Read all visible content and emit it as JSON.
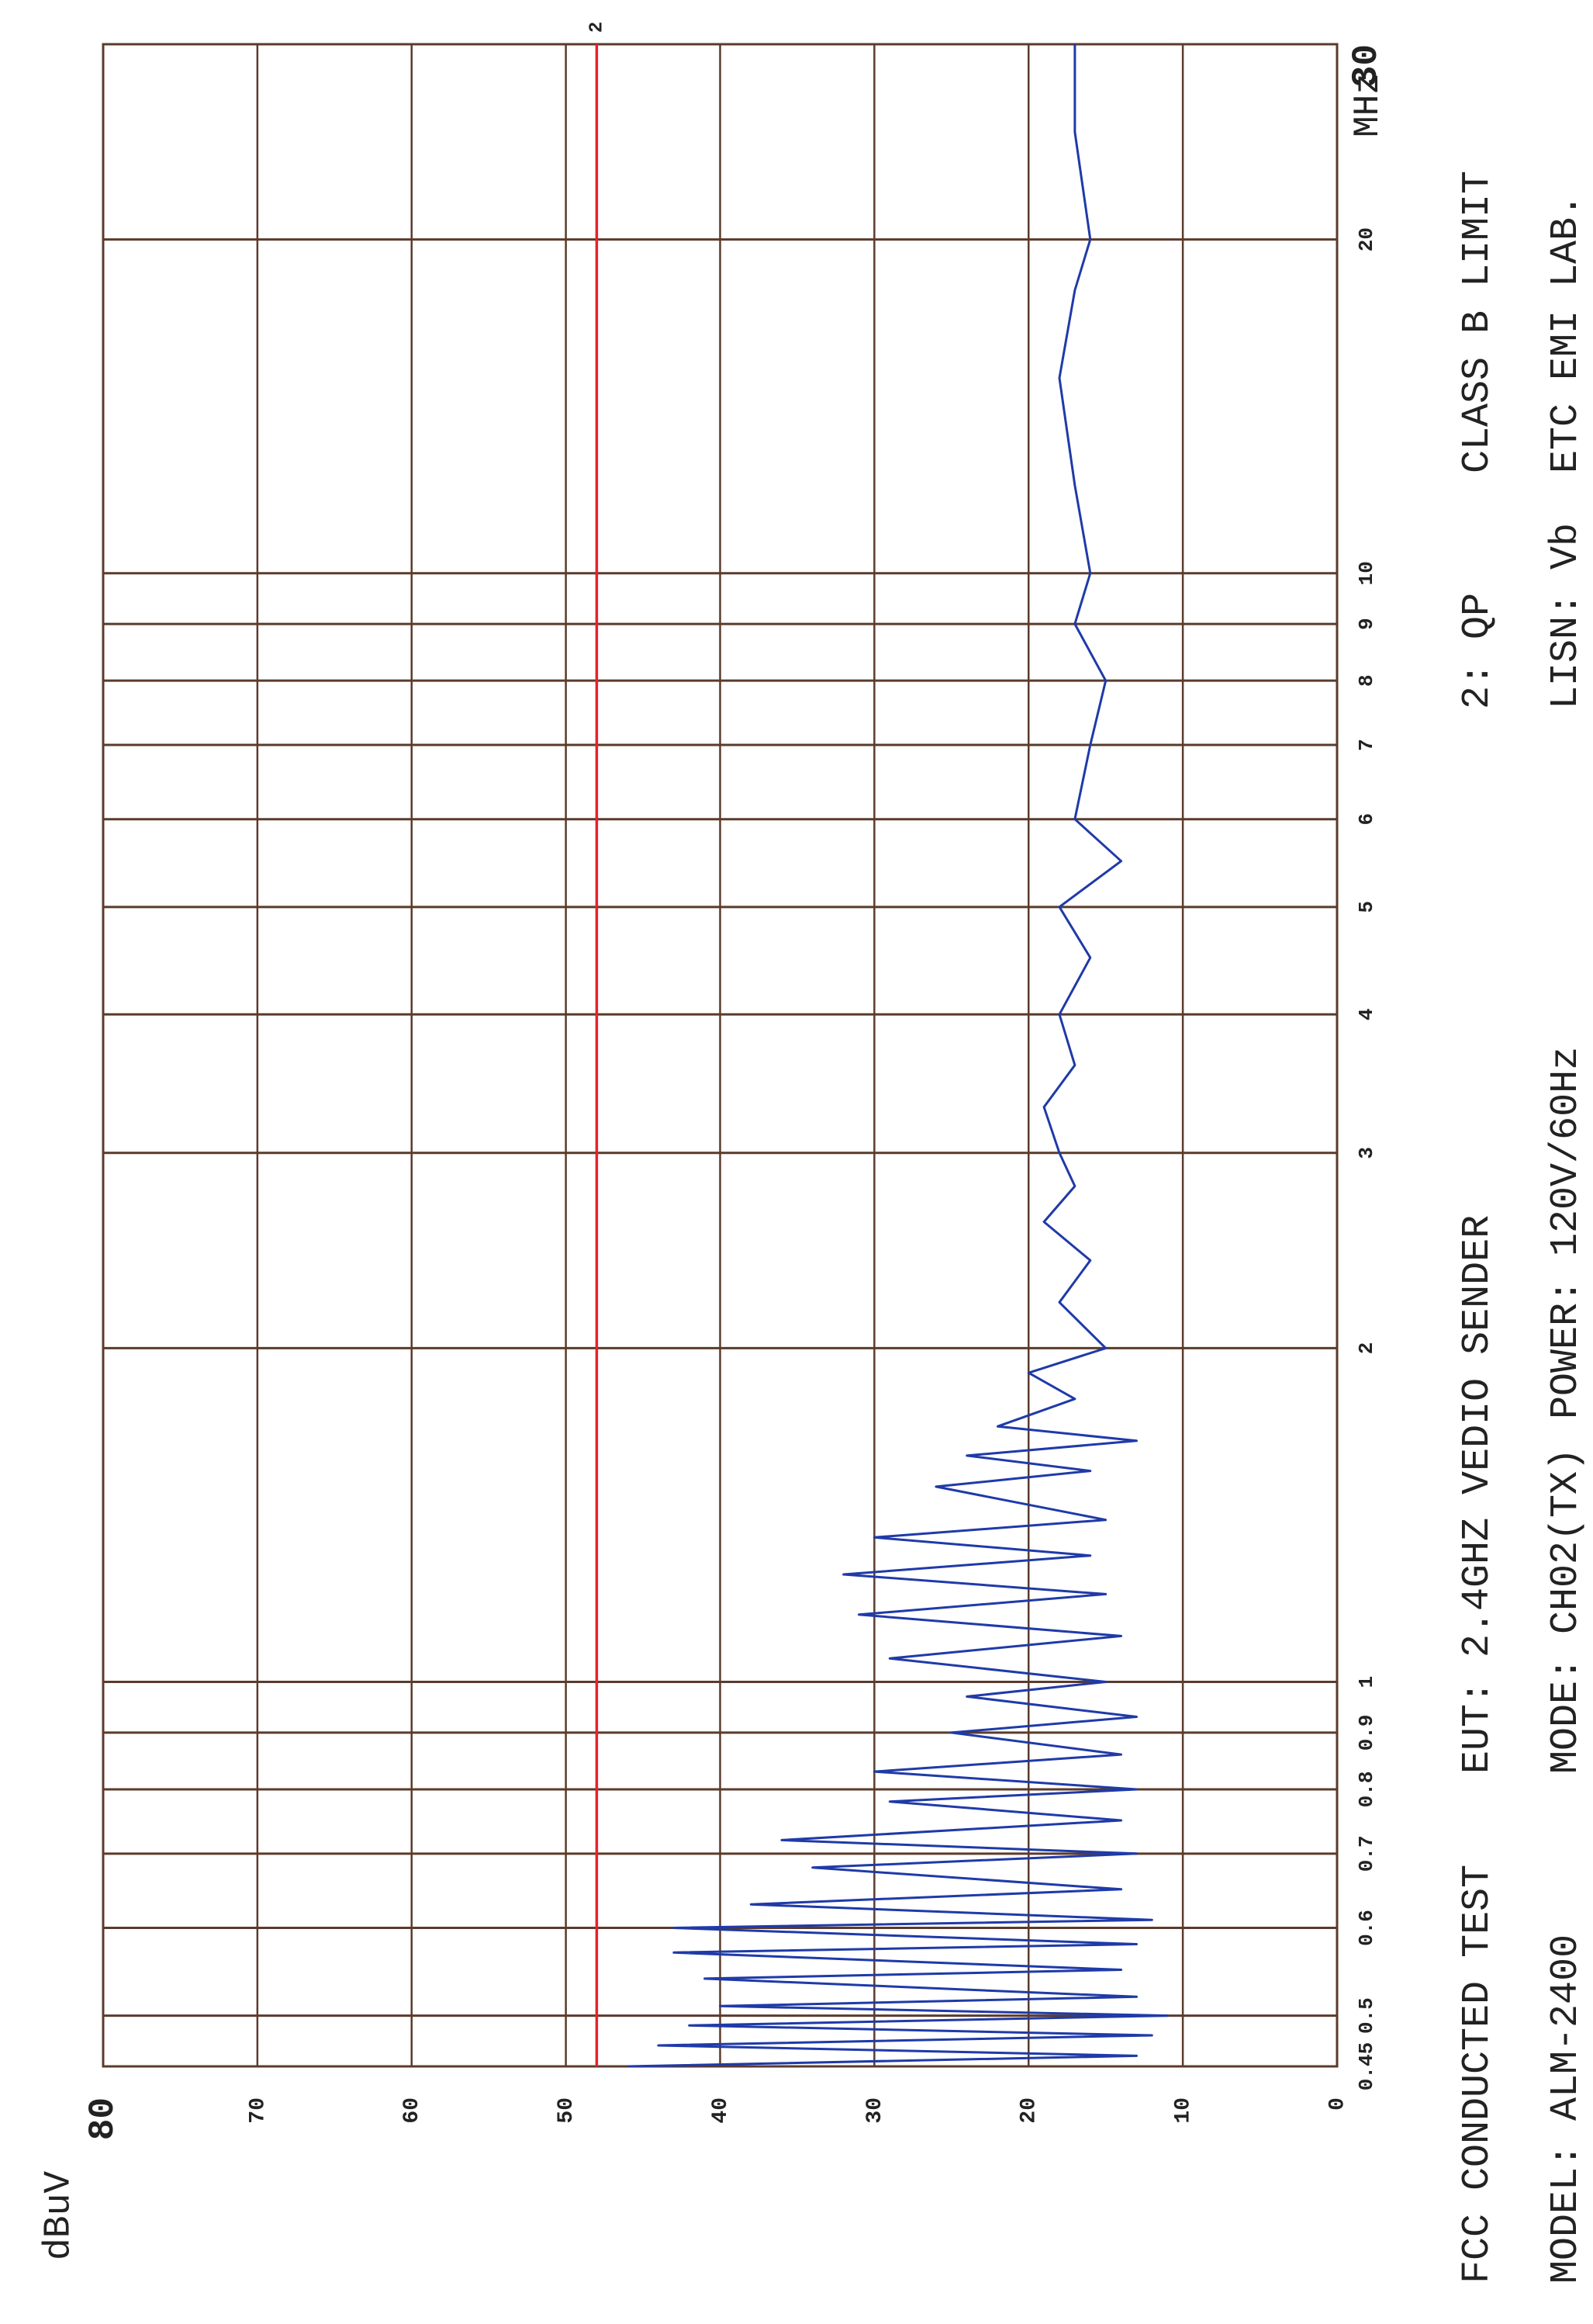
{
  "chart_data": {
    "type": "line",
    "y_label": "dBuV",
    "x_label": "MHz",
    "annotations": [
      "FCC CONDUCTED TEST",
      "MODEL: ALM-2400",
      "EUT: 2.4GHZ VEDIO SENDER",
      "MODE: CH02(TX)",
      "POWER: 120V/60Hz",
      "2: QP",
      "LISN: Vb",
      "CLASS B LIMIT",
      "ETC EMI LAB."
    ],
    "x_log": true,
    "grid": true,
    "xlim": [
      0.45,
      30
    ],
    "xticks": [
      0.45,
      0.5,
      0.6,
      0.7,
      0.8,
      0.9,
      1,
      2,
      3,
      4,
      5,
      6,
      7,
      8,
      9,
      10,
      20,
      30
    ],
    "ylim": [
      0,
      80
    ],
    "yticks": [
      0,
      10,
      20,
      30,
      40,
      50,
      60,
      70,
      80
    ],
    "limit": {
      "name": "2",
      "value": 48,
      "color": "#e8202a"
    },
    "x": [
      0.45,
      0.46,
      0.47,
      0.48,
      0.49,
      0.5,
      0.51,
      0.52,
      0.54,
      0.55,
      0.57,
      0.58,
      0.6,
      0.61,
      0.63,
      0.65,
      0.68,
      0.7,
      0.72,
      0.75,
      0.78,
      0.8,
      0.83,
      0.86,
      0.9,
      0.93,
      0.97,
      1.0,
      1.05,
      1.1,
      1.15,
      1.2,
      1.25,
      1.3,
      1.35,
      1.4,
      1.5,
      1.55,
      1.6,
      1.65,
      1.7,
      1.8,
      1.9,
      2.0,
      2.2,
      2.4,
      2.6,
      2.8,
      3.0,
      3.3,
      3.6,
      4.0,
      4.5,
      5.0,
      5.5,
      6.0,
      7.0,
      8.0,
      9.0,
      10,
      12,
      15,
      18,
      20,
      25,
      30
    ],
    "series": [
      {
        "name": "1",
        "color": "#1f3aa8",
        "values": [
          46,
          13,
          44,
          12,
          42,
          11,
          40,
          13,
          41,
          14,
          43,
          13,
          43,
          12,
          38,
          14,
          34,
          13,
          36,
          14,
          29,
          13,
          30,
          14,
          25,
          13,
          24,
          15,
          29,
          14,
          31,
          15,
          32,
          16,
          30,
          15,
          26,
          16,
          24,
          13,
          22,
          17,
          20,
          15,
          18,
          16,
          19,
          17,
          18,
          19,
          17,
          18,
          16,
          18,
          14,
          17,
          16,
          15,
          17,
          16,
          17,
          18,
          17,
          16,
          17,
          17
        ]
      }
    ]
  }
}
